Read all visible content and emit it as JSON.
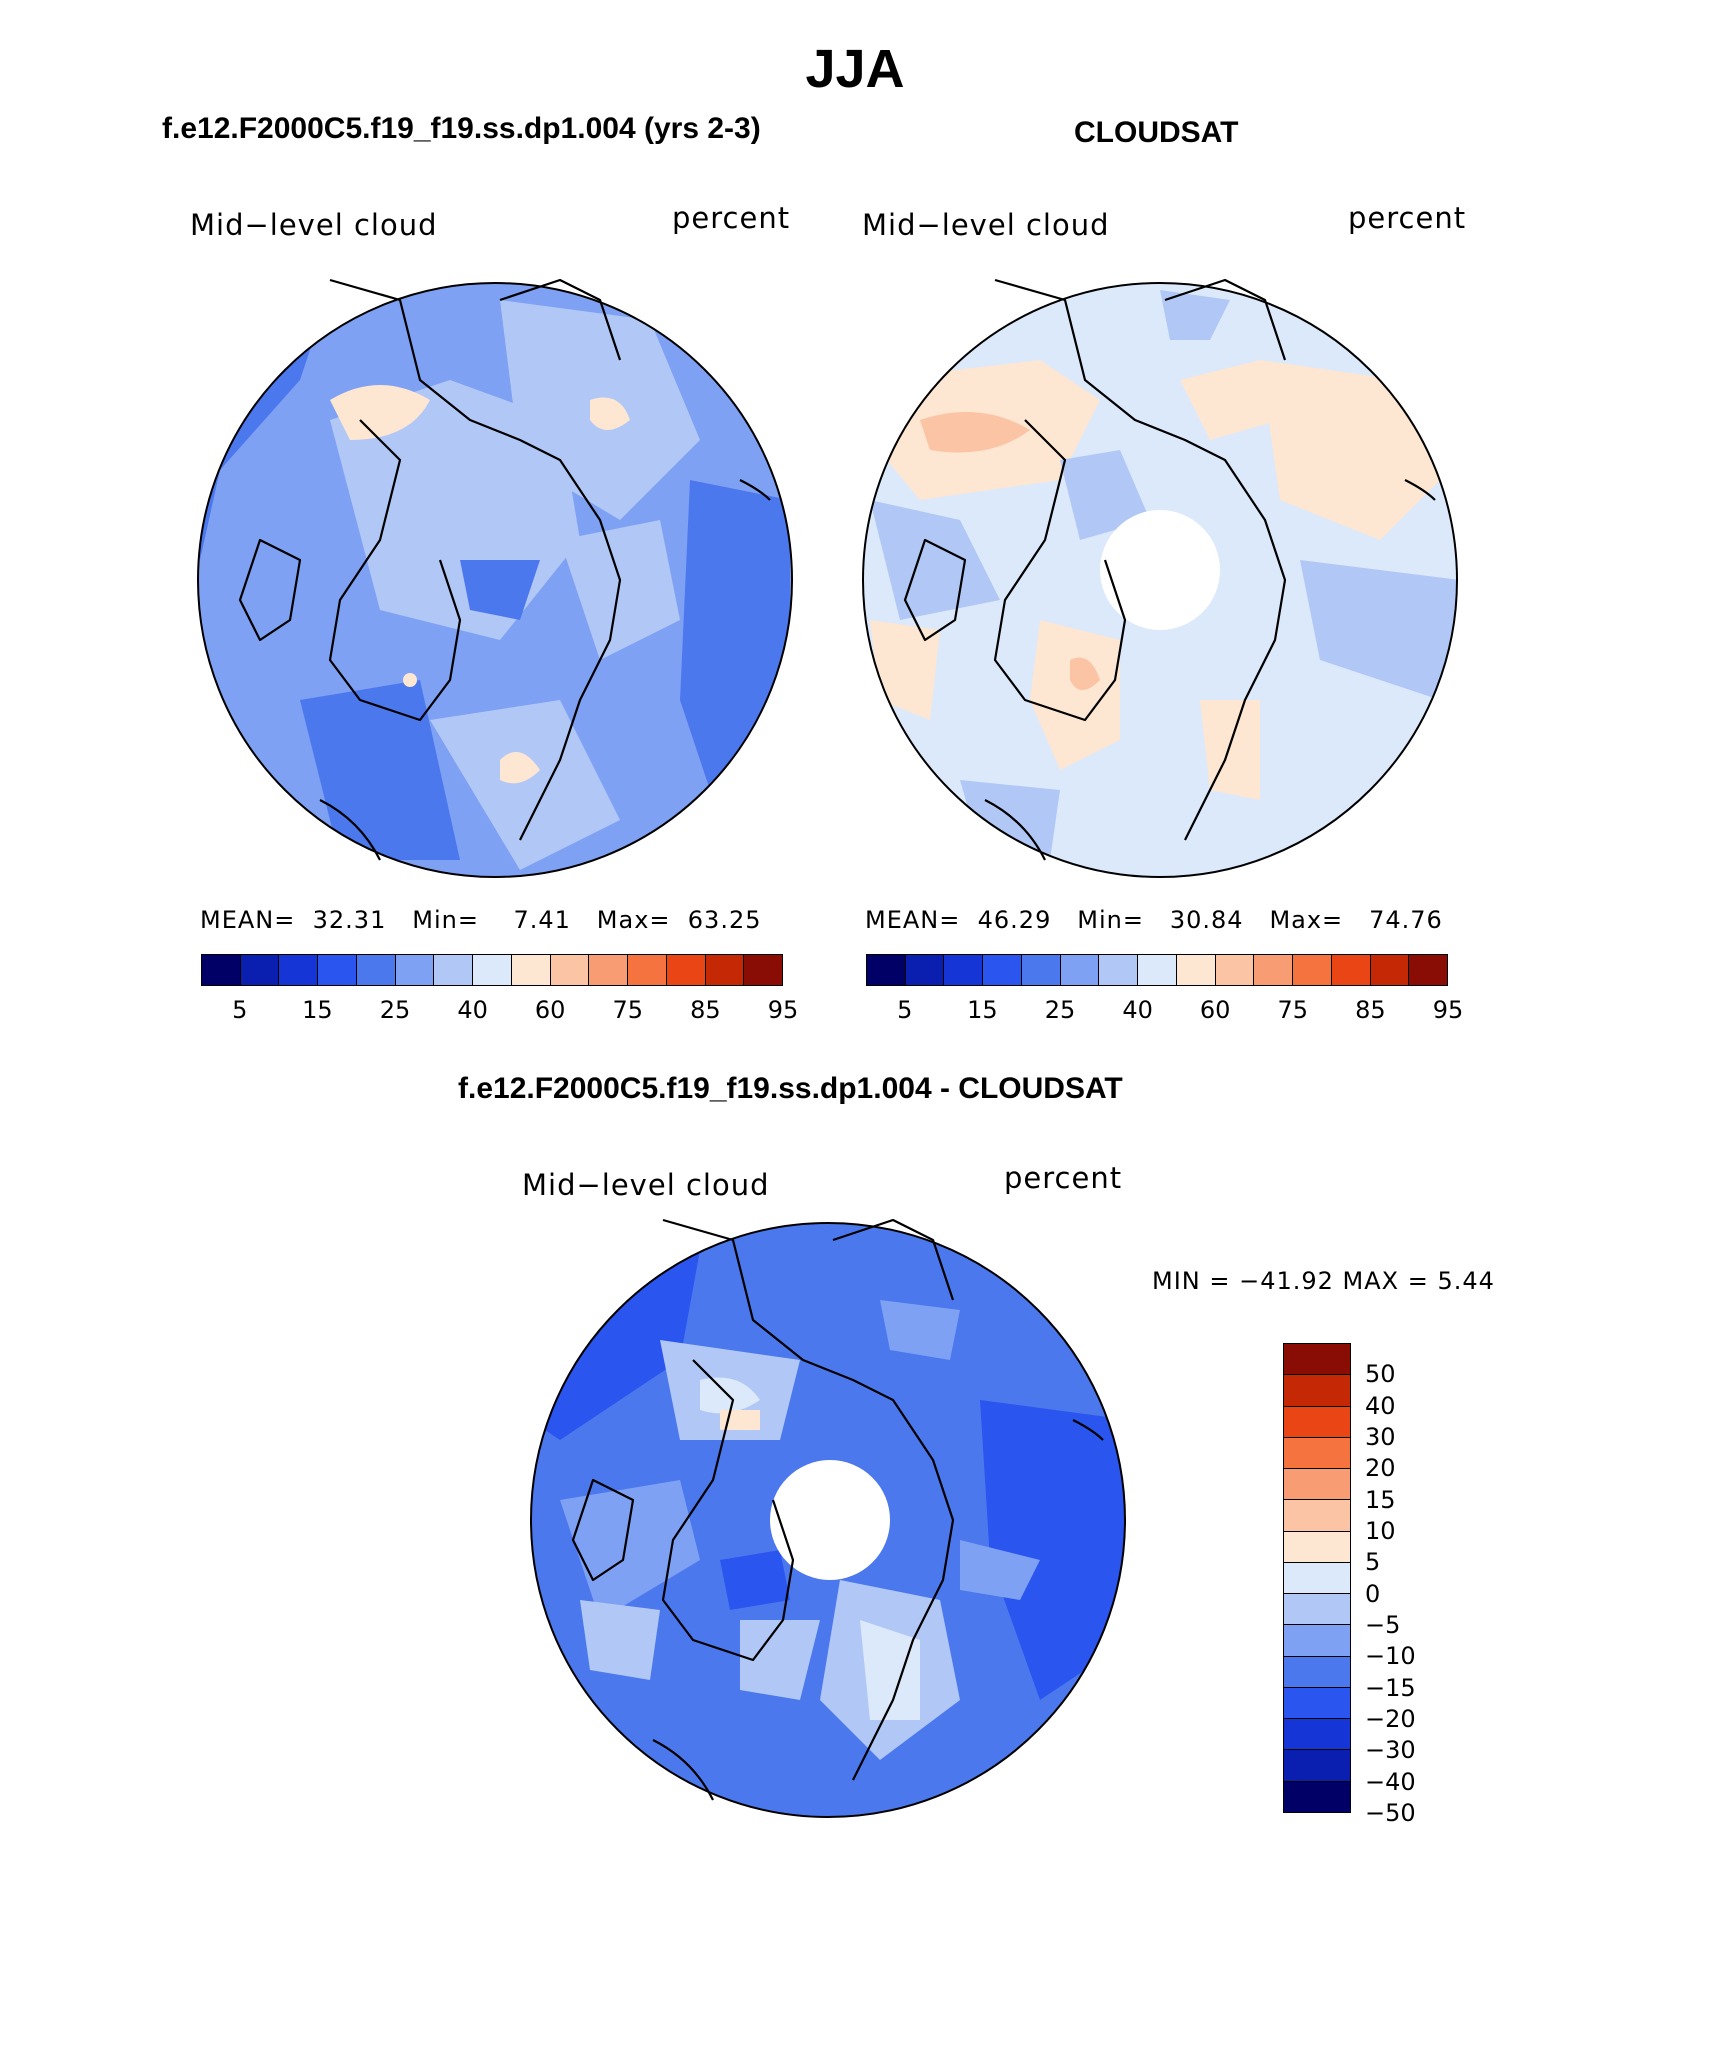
{
  "header": {
    "title": "JJA"
  },
  "panels": {
    "left": {
      "title": "f.e12.F2000C5.f19_f19.ss.dp1.004 (yrs 2-3)",
      "variable": "Mid−level cloud",
      "units": "percent",
      "stats": {
        "mean_label": "MEAN=",
        "mean": "32.31",
        "min_label": "Min=",
        "min": "7.41",
        "max_label": "Max=",
        "max": "63.25"
      }
    },
    "right": {
      "title": "CLOUDSAT",
      "variable": "Mid−level cloud",
      "units": "percent",
      "stats": {
        "mean_label": "MEAN=",
        "mean": "46.29",
        "min_label": "Min=",
        "min": "30.84",
        "max_label": "Max=",
        "max": "74.76"
      }
    },
    "diff": {
      "title": "f.e12.F2000C5.f19_f19.ss.dp1.004 - CLOUDSAT",
      "variable": "Mid−level cloud",
      "units": "percent",
      "minmax": "MIN = −41.92 MAX =    5.44"
    }
  },
  "colorbar_abs": {
    "colors": [
      "#000066",
      "#0a1fb0",
      "#1535d6",
      "#2a55ee",
      "#4c78ee",
      "#7fa1f3",
      "#b1c8f6",
      "#dce9fb",
      "#fde6d2",
      "#fbc4a4",
      "#f89c73",
      "#f4733f",
      "#ea4514",
      "#c52805",
      "#8a0d05"
    ],
    "ticks": [
      "5",
      "15",
      "25",
      "40",
      "60",
      "75",
      "85",
      "95"
    ]
  },
  "colorbar_diff": {
    "colors": [
      "#8a0d05",
      "#c52805",
      "#ea4514",
      "#f4733f",
      "#f89c73",
      "#fbc4a4",
      "#fde6d2",
      "#dce9fb",
      "#b1c8f6",
      "#7fa1f3",
      "#4c78ee",
      "#2a55ee",
      "#1535d6",
      "#0a1fb0",
      "#000066"
    ],
    "ticks": [
      "50",
      "40",
      "30",
      "20",
      "15",
      "10",
      "5",
      "0",
      "−5",
      "−10",
      "−15",
      "−20",
      "−30",
      "−40",
      "−50"
    ]
  }
}
